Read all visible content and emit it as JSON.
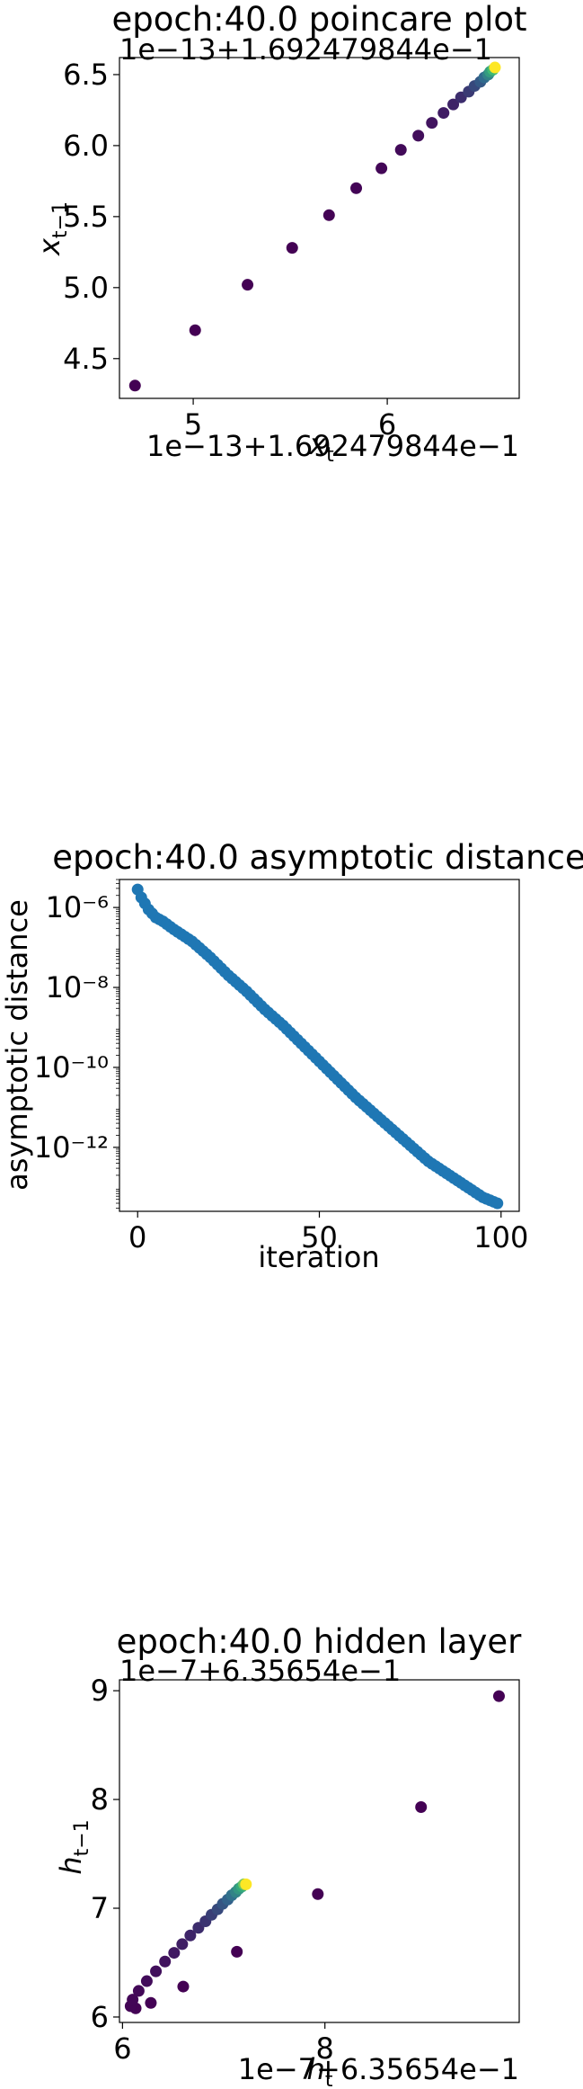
{
  "colors": {
    "viridis_start": "#440154",
    "viridis_mid": "#31688e",
    "viridis_end": "#fde725",
    "tab_blue": "#1f77b4"
  },
  "chart_data": [
    {
      "type": "scatter",
      "title": "epoch:40.0 poincare plot",
      "xlabel": "x_t",
      "ylabel": "x_{t-1}",
      "x_offset_text": "1e−13+1.692479844e−1",
      "y_offset_text": "1e−13+1.692479844e−1",
      "x_ticks": [
        "5",
        "6"
      ],
      "y_ticks": [
        "4.5",
        "5.0",
        "5.5",
        "6.0",
        "6.5"
      ],
      "x_tick_values": [
        5,
        6
      ],
      "y_tick_values": [
        4.5,
        5.0,
        5.5,
        6.0,
        6.5
      ],
      "xlim": [
        4.62,
        6.68
      ],
      "ylim": [
        4.22,
        6.62
      ],
      "color_scale": "viridis (by iteration)",
      "points": [
        {
          "x": 4.7,
          "y": 4.31
        },
        {
          "x": 5.01,
          "y": 4.7
        },
        {
          "x": 5.28,
          "y": 5.02
        },
        {
          "x": 5.51,
          "y": 5.28
        },
        {
          "x": 5.7,
          "y": 5.51
        },
        {
          "x": 5.84,
          "y": 5.7
        },
        {
          "x": 5.97,
          "y": 5.84
        },
        {
          "x": 6.07,
          "y": 5.97
        },
        {
          "x": 6.16,
          "y": 6.07
        },
        {
          "x": 6.23,
          "y": 6.16
        },
        {
          "x": 6.29,
          "y": 6.23
        },
        {
          "x": 6.34,
          "y": 6.29
        },
        {
          "x": 6.38,
          "y": 6.34
        },
        {
          "x": 6.42,
          "y": 6.38
        },
        {
          "x": 6.45,
          "y": 6.42
        },
        {
          "x": 6.48,
          "y": 6.45
        },
        {
          "x": 6.5,
          "y": 6.48
        },
        {
          "x": 6.52,
          "y": 6.5
        },
        {
          "x": 6.53,
          "y": 6.52
        },
        {
          "x": 6.545,
          "y": 6.535
        },
        {
          "x": 6.555,
          "y": 6.55
        }
      ]
    },
    {
      "type": "scatter",
      "title": "epoch:40.0 asymptotic distance",
      "xlabel": "iteration",
      "ylabel": "asymptotic distance",
      "yscale": "log",
      "x_ticks": [
        "0",
        "50",
        "100"
      ],
      "x_tick_values": [
        0,
        50,
        100
      ],
      "y_ticks": [
        "10⁻⁶",
        "10⁻⁸",
        "10⁻¹⁰",
        "10⁻¹²"
      ],
      "y_tick_exponents": [
        -6,
        -8,
        -10,
        -12
      ],
      "xlim": [
        -5,
        105
      ],
      "ylim_log10": [
        -13.6,
        -5.3
      ],
      "series_color": "#1f77b4",
      "x": [
        0,
        1,
        2,
        3,
        4,
        5,
        7,
        10,
        15,
        20,
        25,
        30,
        35,
        40,
        45,
        50,
        55,
        60,
        65,
        70,
        75,
        80,
        85,
        90,
        95,
        99
      ],
      "log10_y": [
        -5.55,
        -5.75,
        -5.9,
        -6.05,
        -6.15,
        -6.25,
        -6.35,
        -6.55,
        -6.85,
        -7.25,
        -7.7,
        -8.1,
        -8.55,
        -8.95,
        -9.4,
        -9.85,
        -10.3,
        -10.75,
        -11.15,
        -11.55,
        -11.95,
        -12.35,
        -12.65,
        -12.95,
        -13.25,
        -13.4
      ]
    },
    {
      "type": "scatter",
      "title": "epoch:40.0 hidden layer",
      "xlabel": "h_t",
      "ylabel": "h_{t-1}",
      "x_offset_text": "1e−7+6.35654e−1",
      "y_offset_text": "1e−7+6.35654e−1",
      "x_ticks": [
        "6",
        "8"
      ],
      "y_ticks": [
        "6",
        "7",
        "8",
        "9"
      ],
      "x_tick_values": [
        6,
        8
      ],
      "y_tick_values": [
        6,
        7,
        8,
        9
      ],
      "xlim": [
        5.97,
        9.92
      ],
      "ylim": [
        5.95,
        9.1
      ],
      "color_scale": "viridis (by iteration)",
      "points": [
        {
          "x": 9.72,
          "y": 8.95
        },
        {
          "x": 8.95,
          "y": 7.93
        },
        {
          "x": 7.93,
          "y": 7.13
        },
        {
          "x": 7.13,
          "y": 6.6
        },
        {
          "x": 6.6,
          "y": 6.28
        },
        {
          "x": 6.28,
          "y": 6.13
        },
        {
          "x": 6.13,
          "y": 6.08
        },
        {
          "x": 6.08,
          "y": 6.1
        },
        {
          "x": 6.1,
          "y": 6.16
        },
        {
          "x": 6.16,
          "y": 6.24
        },
        {
          "x": 6.24,
          "y": 6.33
        },
        {
          "x": 6.33,
          "y": 6.42
        },
        {
          "x": 6.42,
          "y": 6.51
        },
        {
          "x": 6.51,
          "y": 6.59
        },
        {
          "x": 6.59,
          "y": 6.67
        },
        {
          "x": 6.67,
          "y": 6.75
        },
        {
          "x": 6.75,
          "y": 6.82
        },
        {
          "x": 6.82,
          "y": 6.88
        },
        {
          "x": 6.88,
          "y": 6.94
        },
        {
          "x": 6.94,
          "y": 6.99
        },
        {
          "x": 6.99,
          "y": 7.04
        },
        {
          "x": 7.04,
          "y": 7.08
        },
        {
          "x": 7.08,
          "y": 7.12
        },
        {
          "x": 7.12,
          "y": 7.15
        },
        {
          "x": 7.15,
          "y": 7.18
        },
        {
          "x": 7.18,
          "y": 7.2
        },
        {
          "x": 7.2,
          "y": 7.22
        },
        {
          "x": 7.22,
          "y": 7.22
        }
      ]
    }
  ]
}
